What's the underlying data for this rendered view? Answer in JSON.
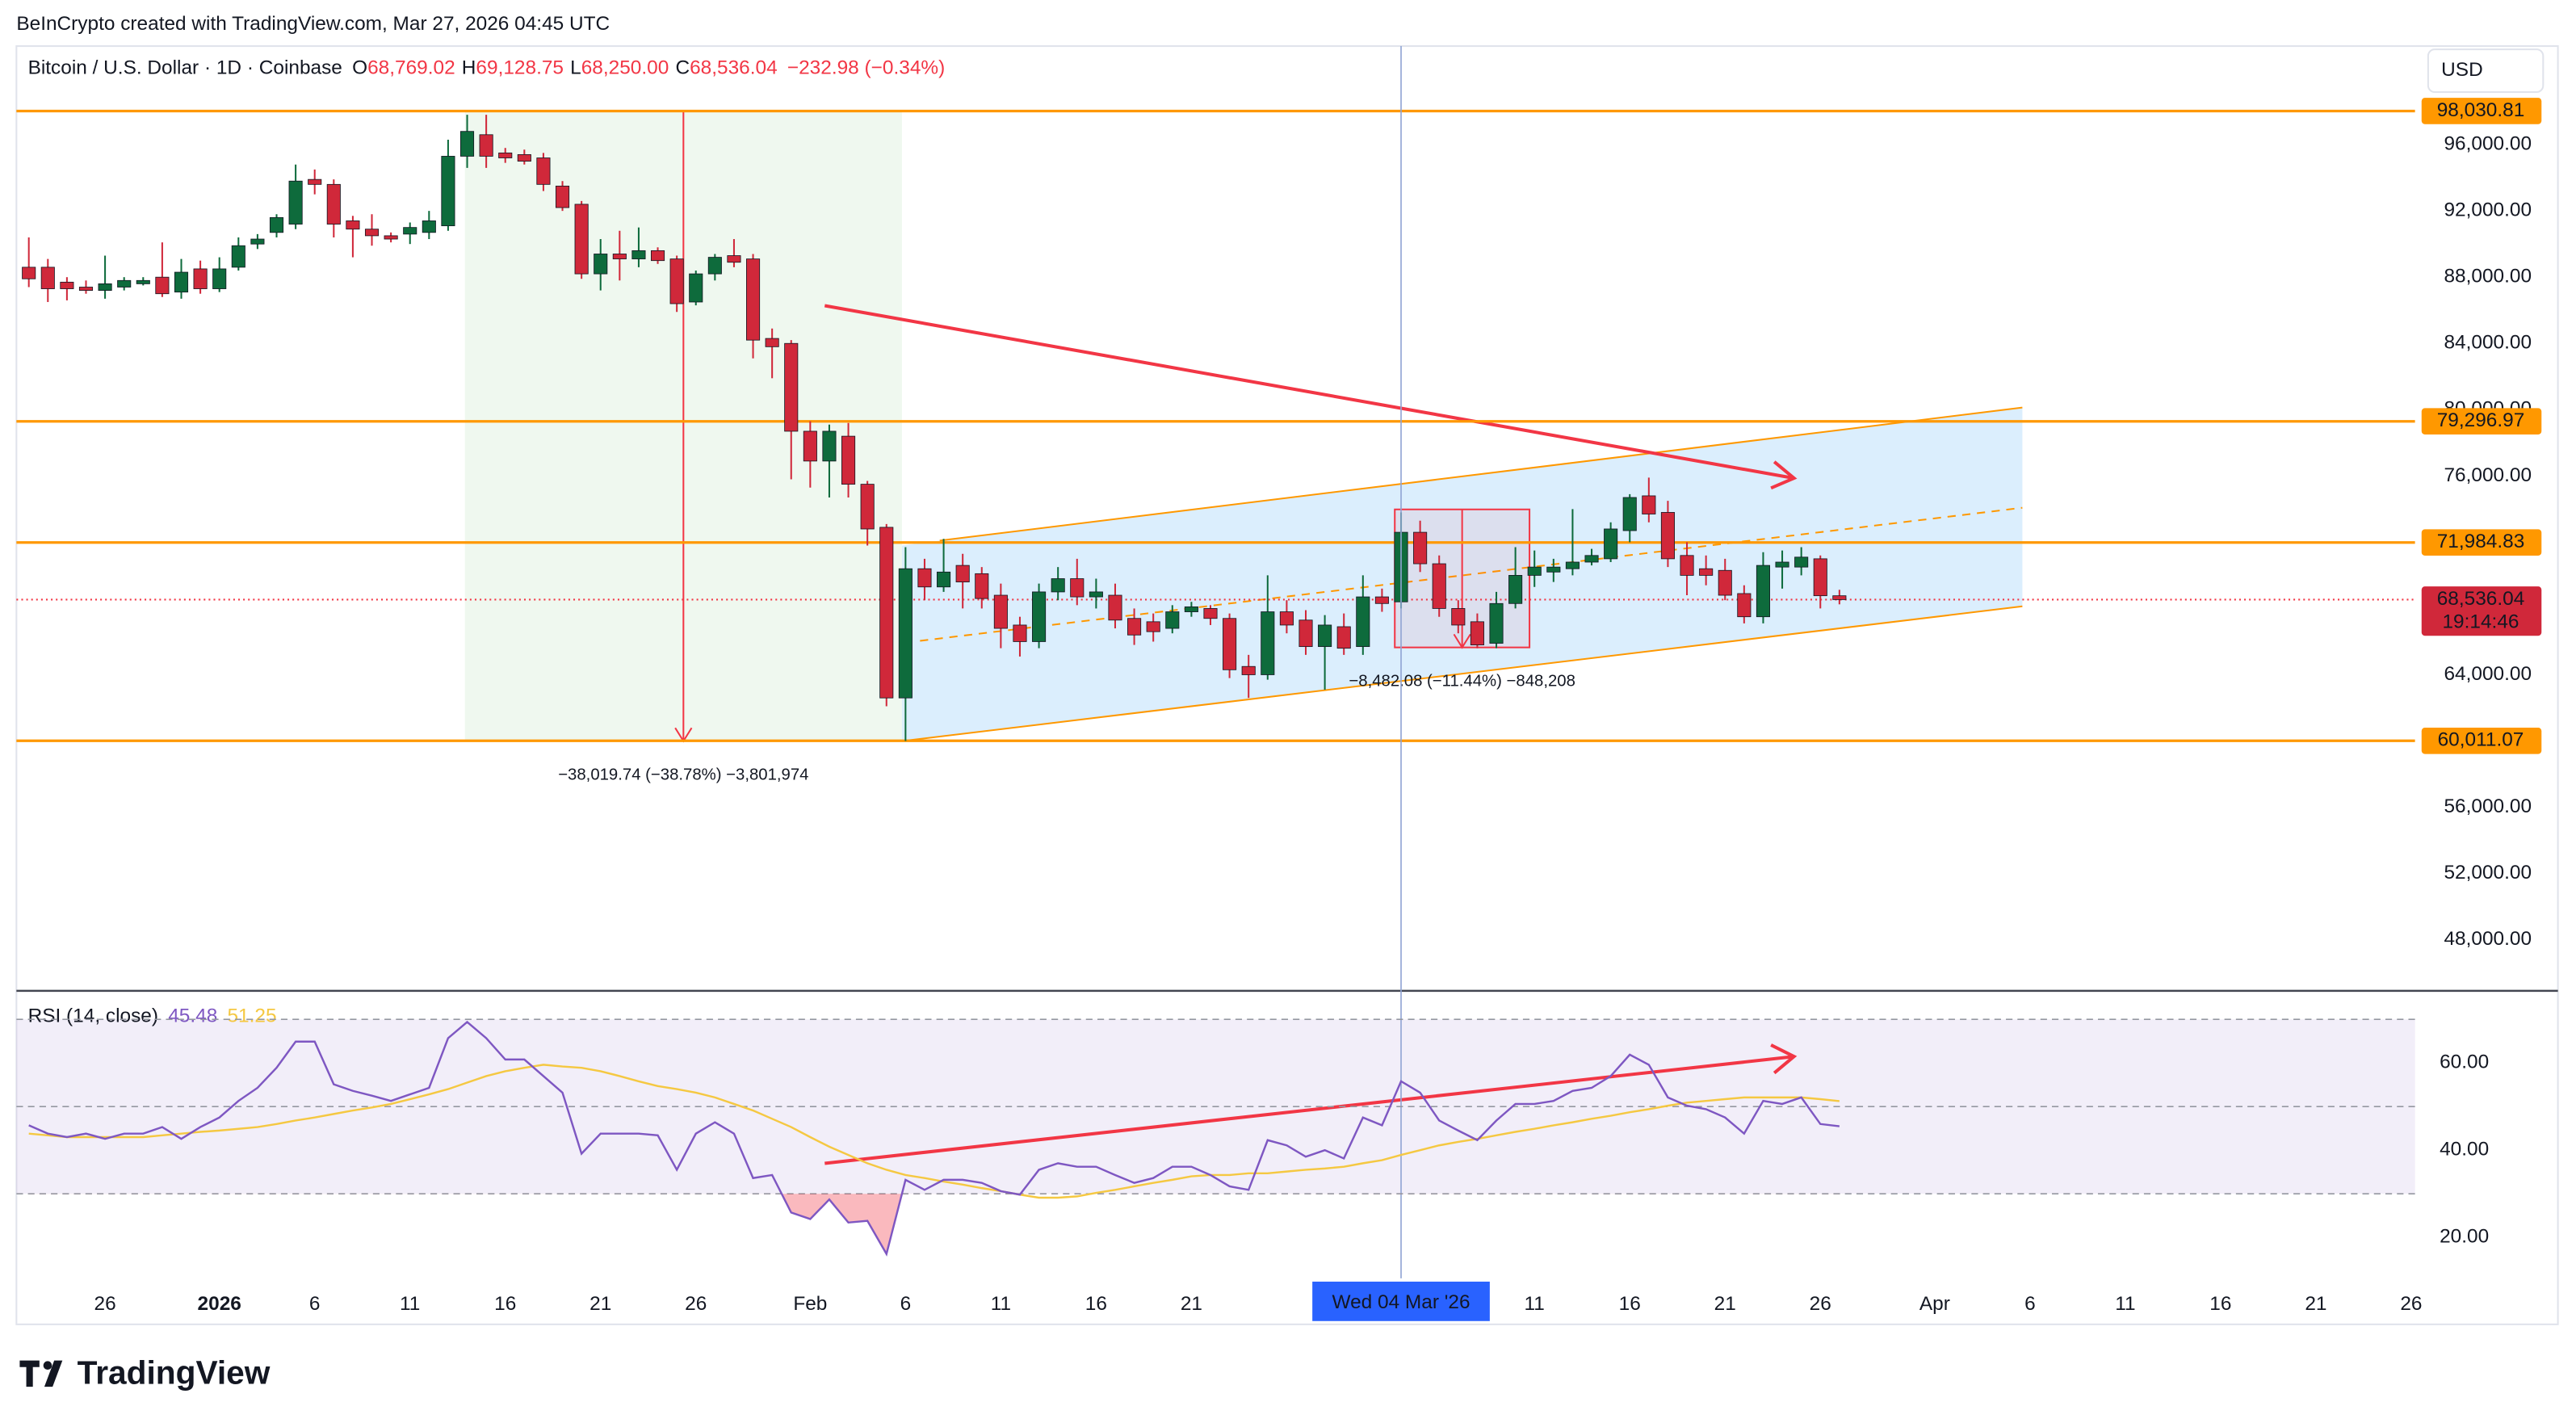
{
  "watermark": "BeInCrypto created with TradingView.com, Mar 27, 2026 04:45 UTC",
  "logo": "TradingView",
  "currency": "USD",
  "chart_data": [
    {
      "type": "candlestick",
      "title": "Bitcoin / U.S. Dollar · 1D · Coinbase",
      "ohlc": [
        [
          "O",
          "68,769.02"
        ],
        [
          "H",
          "69,128.75"
        ],
        [
          "L",
          "68,250.00"
        ],
        [
          "C",
          "68,536.04"
        ]
      ],
      "change": "−232.98 (−0.34%)",
      "up_color": "#0e6b3c",
      "down_color": "#d0283a",
      "level_color": "#ff9800",
      "candles": [
        [
          88600,
          90400,
          87400,
          87900
        ],
        [
          88600,
          89100,
          86500,
          87300
        ],
        [
          87700,
          88000,
          86600,
          87300
        ],
        [
          87400,
          87800,
          87000,
          87200
        ],
        [
          87200,
          89300,
          86700,
          87600
        ],
        [
          87400,
          88000,
          87200,
          87800
        ],
        [
          87600,
          88000,
          87500,
          87800
        ],
        [
          88000,
          90100,
          86800,
          87000
        ],
        [
          87100,
          89100,
          86700,
          88300
        ],
        [
          88500,
          89000,
          87000,
          87300
        ],
        [
          87300,
          89200,
          87100,
          88500
        ],
        [
          88600,
          90400,
          88400,
          89900
        ],
        [
          90000,
          90600,
          89700,
          90300
        ],
        [
          90700,
          91800,
          90400,
          91600
        ],
        [
          91200,
          94800,
          90900,
          93800
        ],
        [
          93900,
          94500,
          93000,
          93600
        ],
        [
          93600,
          93900,
          90400,
          91200
        ],
        [
          91400,
          91700,
          89200,
          90900
        ],
        [
          90900,
          91800,
          89900,
          90500
        ],
        [
          90500,
          90700,
          90100,
          90300
        ],
        [
          90600,
          91300,
          90000,
          91000
        ],
        [
          90700,
          92000,
          90300,
          91400
        ],
        [
          91100,
          96300,
          90800,
          95300
        ],
        [
          95300,
          97800,
          94600,
          96800
        ],
        [
          96600,
          97800,
          94600,
          95300
        ],
        [
          95500,
          95800,
          94900,
          95200
        ],
        [
          95400,
          95700,
          94800,
          95000
        ],
        [
          95200,
          95500,
          93200,
          93600
        ],
        [
          93500,
          93800,
          92000,
          92200
        ],
        [
          92400,
          92600,
          87900,
          88200
        ],
        [
          88200,
          90300,
          87200,
          89400
        ],
        [
          89400,
          90800,
          87800,
          89100
        ],
        [
          89100,
          91000,
          88600,
          89600
        ],
        [
          89600,
          89800,
          88800,
          89000
        ],
        [
          89100,
          89300,
          85900,
          86400
        ],
        [
          86500,
          88400,
          86300,
          88200
        ],
        [
          88200,
          89400,
          87800,
          89200
        ],
        [
          89300,
          90300,
          88600,
          88900
        ],
        [
          89100,
          89400,
          83100,
          84200
        ],
        [
          84300,
          84900,
          81900,
          83800
        ],
        [
          84000,
          84200,
          75800,
          78700
        ],
        [
          78700,
          79300,
          75300,
          76900
        ],
        [
          76900,
          79100,
          74700,
          78700
        ],
        [
          78400,
          79200,
          74700,
          75500
        ],
        [
          75500,
          75700,
          71800,
          72800
        ],
        [
          72900,
          73100,
          62100,
          62600
        ],
        [
          62600,
          71700,
          60000,
          70400
        ],
        [
          70400,
          71000,
          68500,
          69300
        ],
        [
          69300,
          72200,
          69000,
          70200
        ],
        [
          70600,
          71300,
          68000,
          69600
        ],
        [
          70100,
          70500,
          68000,
          68600
        ],
        [
          68800,
          69500,
          65600,
          66800
        ],
        [
          67000,
          67500,
          65100,
          66000
        ],
        [
          66000,
          69500,
          65600,
          69000
        ],
        [
          69000,
          70500,
          68500,
          69800
        ],
        [
          69800,
          71000,
          68200,
          68700
        ],
        [
          68700,
          69800,
          68000,
          69000
        ],
        [
          68800,
          69500,
          66800,
          67300
        ],
        [
          67400,
          68000,
          65800,
          66400
        ],
        [
          67200,
          67700,
          66000,
          66600
        ],
        [
          66800,
          68200,
          66500,
          67800
        ],
        [
          67800,
          68400,
          67500,
          68100
        ],
        [
          68000,
          68200,
          67000,
          67400
        ],
        [
          67400,
          67700,
          63800,
          64300
        ],
        [
          64500,
          65200,
          62600,
          64000
        ],
        [
          64000,
          70000,
          63700,
          67800
        ],
        [
          67800,
          68500,
          66500,
          67000
        ],
        [
          67300,
          67900,
          65200,
          65700
        ],
        [
          65700,
          67600,
          63100,
          67000
        ],
        [
          66900,
          67700,
          65200,
          65600
        ],
        [
          65700,
          70000,
          65200,
          68700
        ],
        [
          68700,
          69200,
          67800,
          68300
        ],
        [
          68400,
          73800,
          68000,
          72600
        ],
        [
          72600,
          73300,
          70200,
          70700
        ],
        [
          70700,
          71200,
          67500,
          68000
        ],
        [
          68000,
          68500,
          66500,
          67000
        ],
        [
          67200,
          67700,
          65600,
          65800
        ],
        [
          65900,
          69000,
          65600,
          68300
        ],
        [
          68300,
          71700,
          68000,
          70000
        ],
        [
          70000,
          71500,
          69300,
          70500
        ],
        [
          70200,
          71000,
          69600,
          70500
        ],
        [
          70400,
          74000,
          70000,
          70800
        ],
        [
          70800,
          71600,
          70600,
          71200
        ],
        [
          71000,
          73200,
          70800,
          72800
        ],
        [
          72700,
          74900,
          72000,
          74700
        ],
        [
          74800,
          75900,
          73200,
          73700
        ],
        [
          73800,
          74500,
          70500,
          71000
        ],
        [
          71200,
          72000,
          68800,
          70000
        ],
        [
          70400,
          71200,
          69400,
          70000
        ],
        [
          70300,
          71000,
          68500,
          68800
        ],
        [
          68900,
          69400,
          67100,
          67500
        ],
        [
          67500,
          71400,
          67100,
          70600
        ],
        [
          70500,
          71500,
          69200,
          70800
        ],
        [
          70500,
          71700,
          70000,
          71100
        ],
        [
          71000,
          71200,
          68000,
          68769.02
        ],
        [
          68769.02,
          69128.75,
          68250,
          68536.04
        ]
      ],
      "xlim": [
        -0.65,
        125.2
      ],
      "xticks": [
        {
          "value": 4,
          "label": "26"
        },
        {
          "value": 10,
          "label": "2026"
        },
        {
          "value": 15,
          "label": "6"
        },
        {
          "value": 20,
          "label": "11"
        },
        {
          "value": 25,
          "label": "16"
        },
        {
          "value": 30,
          "label": "21"
        },
        {
          "value": 35,
          "label": "26"
        },
        {
          "value": 41,
          "label": "Feb"
        },
        {
          "value": 46,
          "label": "6"
        },
        {
          "value": 51,
          "label": "11"
        },
        {
          "value": 56,
          "label": "16"
        },
        {
          "value": 61,
          "label": "21"
        },
        {
          "value": 79,
          "label": "11"
        },
        {
          "value": 84,
          "label": "16"
        },
        {
          "value": 89,
          "label": "21"
        },
        {
          "value": 94,
          "label": "26"
        },
        {
          "value": 100,
          "label": "Apr"
        },
        {
          "value": 105,
          "label": "6"
        },
        {
          "value": 110,
          "label": "11"
        },
        {
          "value": 115,
          "label": "16"
        },
        {
          "value": 120,
          "label": "21"
        },
        {
          "value": 125,
          "label": "26"
        }
      ],
      "ylim": [
        44920,
        101950
      ],
      "yticks": [
        {
          "value": 96000,
          "label": "96,000.00"
        },
        {
          "value": 92000,
          "label": "92,000.00"
        },
        {
          "value": 88000,
          "label": "88,000.00"
        },
        {
          "value": 84000,
          "label": "84,000.00"
        },
        {
          "value": 80000,
          "label": "80,000.00"
        },
        {
          "value": 76000,
          "label": "76,000.00"
        },
        {
          "value": 72000,
          "label": "72,000.00"
        },
        {
          "value": 68000,
          "label": "68,000.00"
        },
        {
          "value": 64000,
          "label": "64,000.00"
        },
        {
          "value": 60000,
          "label": "60,000.00"
        },
        {
          "value": 56000,
          "label": "56,000.00"
        },
        {
          "value": 52000,
          "label": "52,000.00"
        },
        {
          "value": 48000,
          "label": "48,000.00"
        }
      ],
      "levels": [
        {
          "value": 98030.81,
          "label": "98,030.81"
        },
        {
          "value": 79296.97,
          "label": "79,296.97"
        },
        {
          "value": 71984.83,
          "label": "71,984.83"
        },
        {
          "value": 60011.07,
          "label": "60,011.07"
        }
      ],
      "last_price": {
        "value": 68536.04,
        "label": "68,536.04"
      },
      "countdown": "19:14:46",
      "crosshair": {
        "value": 72,
        "label": "Wed 04 Mar '26"
      },
      "annotations": [
        "−38,019.74 (−38.78%) −3,801,974",
        "−8,482.08 (−11.44%) −848,208"
      ]
    },
    {
      "type": "line",
      "title": "RSI (14, close)",
      "ylim": [
        10.6,
        75.8
      ],
      "yticks": [
        {
          "value": 60,
          "label": "60.00"
        },
        {
          "value": 40,
          "label": "40.00"
        },
        {
          "value": 20,
          "label": "20.00"
        }
      ],
      "levels": [
        70,
        50,
        30
      ],
      "series": [
        {
          "color": "#7e57c2",
          "last_label": "45.48",
          "values": [
            45.7,
            43.8,
            43.0,
            43.8,
            42.6,
            43.8,
            43.8,
            45.3,
            42.6,
            45.3,
            47.5,
            51.3,
            54.3,
            58.9,
            64.9,
            64.9,
            55.1,
            53.6,
            52.5,
            51.3,
            52.8,
            54.3,
            65.7,
            69.4,
            65.7,
            60.8,
            60.8,
            57.0,
            53.2,
            39.2,
            43.8,
            43.8,
            43.8,
            43.4,
            35.5,
            43.8,
            46.4,
            43.8,
            33.6,
            34.3,
            25.7,
            24.2,
            28.7,
            23.4,
            23.8,
            16.2,
            33.2,
            30.9,
            33.2,
            33.2,
            32.5,
            30.6,
            29.8,
            35.5,
            37.0,
            36.2,
            36.2,
            34.3,
            32.5,
            33.6,
            36.2,
            36.2,
            34.3,
            31.7,
            30.9,
            42.3,
            41.1,
            38.5,
            40.0,
            38.1,
            47.5,
            45.7,
            55.8,
            53.2,
            46.8,
            44.5,
            42.3,
            46.8,
            50.6,
            50.6,
            51.3,
            53.6,
            54.3,
            57.0,
            61.9,
            59.6,
            52.1,
            50.2,
            49.4,
            47.5,
            43.8,
            51.3,
            50.6,
            52.1,
            46.0,
            45.48
          ]
        },
        {
          "color": "#f5c842",
          "last_label": "51.25",
          "values": [
            43.8,
            43.4,
            43.0,
            43.0,
            43.0,
            43.0,
            43.0,
            43.4,
            43.8,
            44.2,
            44.5,
            44.9,
            45.3,
            46.0,
            46.8,
            47.5,
            48.3,
            49.1,
            49.8,
            50.6,
            51.7,
            52.8,
            54.0,
            55.5,
            57.0,
            58.1,
            58.9,
            59.6,
            59.2,
            58.9,
            58.1,
            57.0,
            55.8,
            54.7,
            54.0,
            53.2,
            52.1,
            50.6,
            49.1,
            47.2,
            45.3,
            43.0,
            40.8,
            38.9,
            37.0,
            35.5,
            34.3,
            33.6,
            32.8,
            32.1,
            31.3,
            30.6,
            29.8,
            29.1,
            29.1,
            29.4,
            30.2,
            30.9,
            31.7,
            32.5,
            33.2,
            34.0,
            34.3,
            34.3,
            34.7,
            34.7,
            35.1,
            35.5,
            35.8,
            36.2,
            37.0,
            37.7,
            38.9,
            40.0,
            41.1,
            41.9,
            42.6,
            43.4,
            44.2,
            44.9,
            45.7,
            46.4,
            47.2,
            47.9,
            48.7,
            49.4,
            50.2,
            50.9,
            51.3,
            51.7,
            52.1,
            52.1,
            52.1,
            52.1,
            51.7,
            51.25
          ]
        }
      ]
    }
  ]
}
